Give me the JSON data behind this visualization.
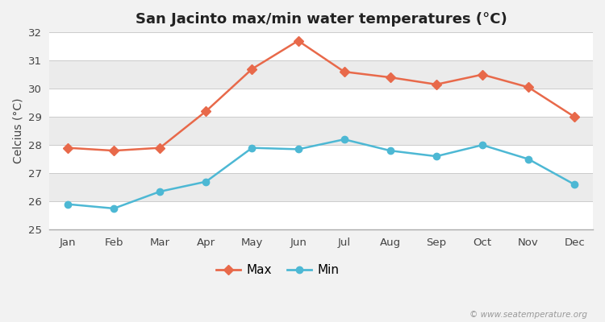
{
  "title": "San Jacinto max/min water temperatures (°C)",
  "ylabel": "Celcius (°C)",
  "months": [
    "Jan",
    "Feb",
    "Mar",
    "Apr",
    "May",
    "Jun",
    "Jul",
    "Aug",
    "Sep",
    "Oct",
    "Nov",
    "Dec"
  ],
  "max_temps": [
    27.9,
    27.8,
    27.9,
    29.2,
    30.7,
    31.7,
    30.6,
    30.4,
    30.15,
    30.5,
    30.05,
    29.0
  ],
  "min_temps": [
    25.9,
    25.75,
    26.35,
    26.7,
    27.9,
    27.85,
    28.2,
    27.8,
    27.6,
    28.0,
    27.5,
    26.6
  ],
  "max_color": "#e8694a",
  "min_color": "#4db8d4",
  "bg_color": "#f2f2f2",
  "plot_bg_white": "#ffffff",
  "plot_bg_gray": "#ebebeb",
  "ylim": [
    25,
    32
  ],
  "yticks": [
    25,
    26,
    27,
    28,
    29,
    30,
    31,
    32
  ],
  "watermark": "© www.seatemperature.org",
  "legend_max": "Max",
  "legend_min": "Min",
  "title_fontsize": 13,
  "label_fontsize": 10,
  "tick_fontsize": 9.5
}
